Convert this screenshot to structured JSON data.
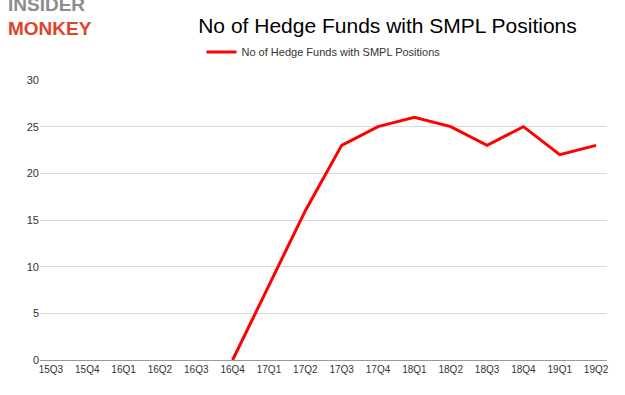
{
  "chart_data": {
    "type": "line",
    "title": "No of Hedge Funds with SMPL Positions",
    "annotations": [
      "INSIDER",
      "MONKEY"
    ],
    "categories": [
      "15Q3",
      "15Q4",
      "16Q1",
      "16Q2",
      "16Q3",
      "16Q4",
      "17Q1",
      "17Q2",
      "17Q3",
      "17Q4",
      "18Q1",
      "18Q2",
      "18Q3",
      "18Q4",
      "19Q1",
      "19Q2"
    ],
    "series": [
      {
        "name": "No of Hedge Funds with SMPL Positions",
        "color": "#ff0000",
        "values": [
          null,
          null,
          null,
          null,
          null,
          0,
          8,
          16,
          23,
          25,
          26,
          25,
          23,
          25,
          22,
          23
        ]
      }
    ],
    "ylim": [
      0,
      30
    ],
    "yticks": [
      0,
      5,
      10,
      15,
      20,
      25,
      30
    ],
    "grid": true,
    "legend": "top"
  }
}
